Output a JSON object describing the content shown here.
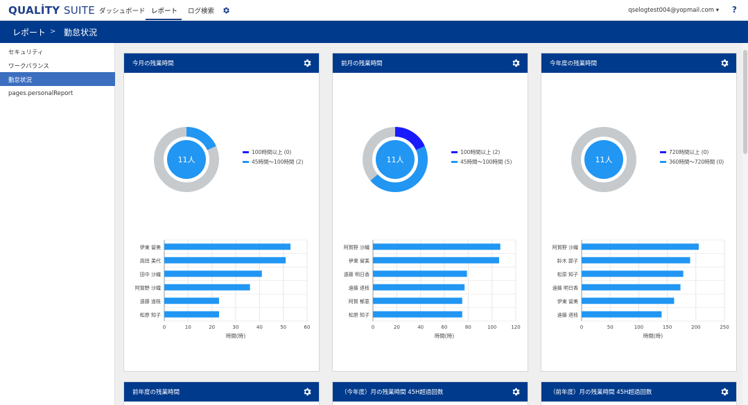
{
  "app": {
    "logo_main": "QUALİTY",
    "logo_sub": "SUITE"
  },
  "nav": {
    "items": [
      "ダッシュボード",
      "レポート",
      "ログ検索"
    ],
    "user_email": "qselogtest004@yopmail.com ▾",
    "help": "?"
  },
  "breadcrumb": {
    "parent": "レポート",
    "separator": ">",
    "current": "勤怠状況"
  },
  "sidebar": {
    "items": [
      "セキュリティ",
      "ワークバランス",
      "勤怠状況",
      "pages.personalReport"
    ],
    "active_index": 2
  },
  "colors": {
    "primary": "#003a8c",
    "bar": "#2196f3",
    "dark_series": "#1a1aff",
    "light_series": "#2196f3",
    "ring_bg": "#c7cacd"
  },
  "cards": [
    {
      "title": "今月の残業時間"
    },
    {
      "title": "前月の残業時間"
    },
    {
      "title": "今年度の残業時間"
    },
    {
      "title": "前年度の残業時間"
    },
    {
      "title": "（今年度）月の残業時間 45H超過回数"
    },
    {
      "title": "（前年度）月の残業時間 45H超過回数"
    }
  ],
  "chart_data": [
    {
      "type": "pie",
      "center_label": "11人",
      "legend": [
        "100時間以上 (0)",
        "45時間～100時間 (2)"
      ],
      "slices": [
        {
          "name": "100時間以上",
          "value": 0
        },
        {
          "name": "45時間～100時間",
          "value": 2
        }
      ],
      "total": 11
    },
    {
      "type": "bar",
      "orientation": "horizontal",
      "categories": [
        "伊東 留美",
        "高田 美代",
        "田中 沙織",
        "阿賀野 沙織",
        "遠藤 道枝",
        "松原 知子"
      ],
      "values": [
        53,
        51,
        41,
        36,
        23,
        23
      ],
      "xlabel": "時間(時)",
      "xlim": [
        0,
        60
      ],
      "xticks": [
        0,
        10,
        20,
        30,
        40,
        50,
        60
      ]
    },
    {
      "type": "pie",
      "center_label": "11人",
      "legend": [
        "100時間以上 (2)",
        "45時間～100時間 (5)"
      ],
      "slices": [
        {
          "name": "100時間以上",
          "value": 2
        },
        {
          "name": "45時間～100時間",
          "value": 5
        }
      ],
      "total": 11
    },
    {
      "type": "bar",
      "orientation": "horizontal",
      "categories": [
        "阿賀野 沙織",
        "伊東 留美",
        "遠藤 明日香",
        "遠藤 道枝",
        "阿賀 郁恵",
        "松原 知子"
      ],
      "values": [
        107,
        106,
        79,
        77,
        75,
        75
      ],
      "xlabel": "時間(時)",
      "xlim": [
        0,
        120
      ],
      "xticks": [
        0,
        20,
        40,
        60,
        80,
        100,
        120
      ]
    },
    {
      "type": "pie",
      "center_label": "11人",
      "legend": [
        "720時間以上 (0)",
        "360時間～720時間 (0)"
      ],
      "slices": [
        {
          "name": "720時間以上",
          "value": 0
        },
        {
          "name": "360時間～720時間",
          "value": 0
        }
      ],
      "total": 11
    },
    {
      "type": "bar",
      "orientation": "horizontal",
      "categories": [
        "阿賀野 沙織",
        "鈴木 節子",
        "松原 知子",
        "遠藤 明日香",
        "伊東 留美",
        "遠藤 道枝"
      ],
      "values": [
        205,
        190,
        178,
        173,
        162,
        140
      ],
      "xlabel": "時間(時)",
      "xlim": [
        0,
        250
      ],
      "xticks": [
        0,
        50,
        100,
        150,
        200,
        250
      ]
    }
  ]
}
